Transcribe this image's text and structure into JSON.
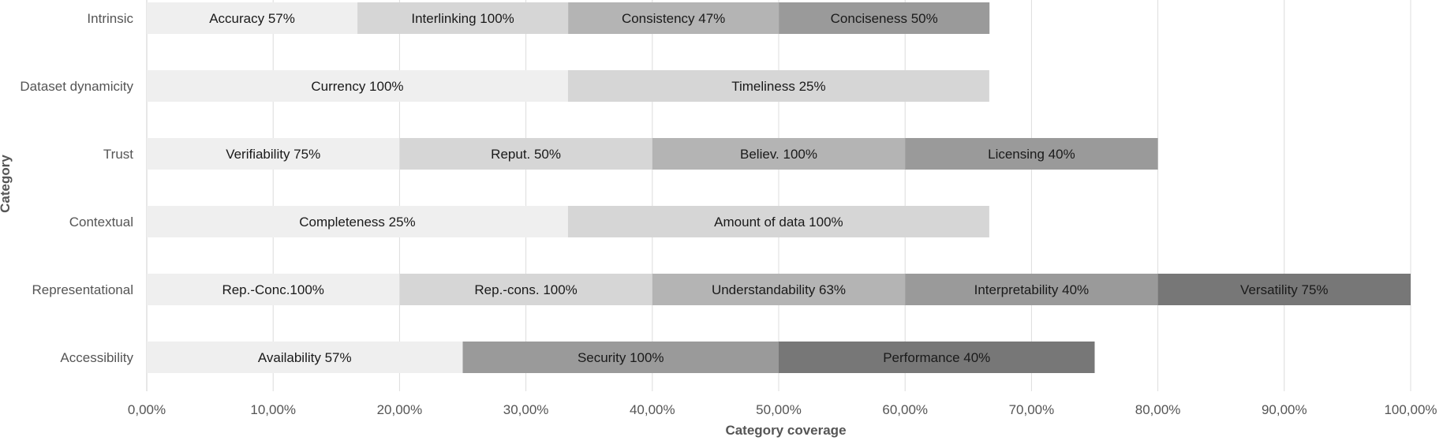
{
  "chart_data": {
    "type": "bar",
    "orientation": "horizontal",
    "stacked": true,
    "xlabel": "Category coverage",
    "ylabel": "Category",
    "xlim": [
      0,
      100
    ],
    "x_ticks": [
      "0,00%",
      "10,00%",
      "20,00%",
      "30,00%",
      "40,00%",
      "50,00%",
      "60,00%",
      "70,00%",
      "80,00%",
      "90,00%",
      "100,00%"
    ],
    "grid": "vertical",
    "segment_colors": [
      "#efefef",
      "#d6d6d6",
      "#b4b4b4",
      "#9a9a9a",
      "#777777"
    ],
    "categories": [
      {
        "name": "Intrinsic",
        "segments": [
          {
            "label": "Accuracy 57%",
            "value": 16.67
          },
          {
            "label": "Interlinking 100%",
            "value": 16.67
          },
          {
            "label": "Consistency 47%",
            "value": 16.67
          },
          {
            "label": "Conciseness 50%",
            "value": 16.67
          }
        ]
      },
      {
        "name": "Dataset dynamicity",
        "segments": [
          {
            "label": "Currency 100%",
            "value": 33.33
          },
          {
            "label": "Timeliness 25%",
            "value": 33.33
          }
        ]
      },
      {
        "name": "Trust",
        "segments": [
          {
            "label": "Verifiability 75%",
            "value": 20
          },
          {
            "label": "Reput. 50%",
            "value": 20
          },
          {
            "label": "Believ. 100%",
            "value": 20
          },
          {
            "label": "Licensing 40%",
            "value": 20
          }
        ]
      },
      {
        "name": "Contextual",
        "segments": [
          {
            "label": "Completeness 25%",
            "value": 33.33
          },
          {
            "label": "Amount of data 100%",
            "value": 33.33
          }
        ]
      },
      {
        "name": "Representational",
        "segments": [
          {
            "label": "Rep.-Conc.100%",
            "value": 20
          },
          {
            "label": "Rep.-cons. 100%",
            "value": 20
          },
          {
            "label": "Understandability 63%",
            "value": 20
          },
          {
            "label": "Interpretability 40%",
            "value": 20
          },
          {
            "label": "Versatility 75%",
            "value": 20
          }
        ]
      },
      {
        "name": "Accessibility",
        "segments": [
          {
            "label": "Availability 57%",
            "value": 25
          },
          {
            "label": "Security 100%",
            "value": 25,
            "color_index": 3
          },
          {
            "label": "Performance 40%",
            "value": 25,
            "color_index": 4
          }
        ]
      }
    ]
  }
}
